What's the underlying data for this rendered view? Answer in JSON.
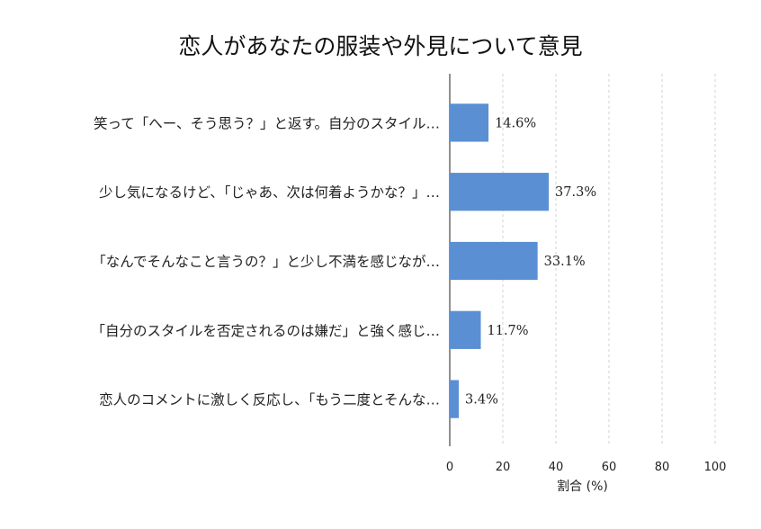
{
  "chart_data": {
    "type": "bar",
    "orientation": "horizontal",
    "title": "恋人があなたの服装や外見について意見",
    "xlabel": "割合 (%)",
    "ylabel": "",
    "xlim": [
      0,
      100
    ],
    "xticks": [
      0,
      20,
      40,
      60,
      80,
      100
    ],
    "grid": "vertical dashed",
    "bar_color": "#5b8fd3",
    "categories": [
      "笑って「へー、そう思う？」と返す。自分のスタイル…",
      "少し気になるけど、「じゃあ、次は何着ようかな？」…",
      "「なんでそんなこと言うの？」と少し不満を感じなが…",
      "「自分のスタイルを否定されるのは嫌だ」と強く感じ…",
      "恋人のコメントに激しく反応し、「もう二度とそんな…"
    ],
    "values": [
      14.6,
      37.3,
      33.1,
      11.7,
      3.4
    ],
    "value_labels": [
      "14.6%",
      "37.3%",
      "33.1%",
      "11.7%",
      "3.4%"
    ]
  }
}
